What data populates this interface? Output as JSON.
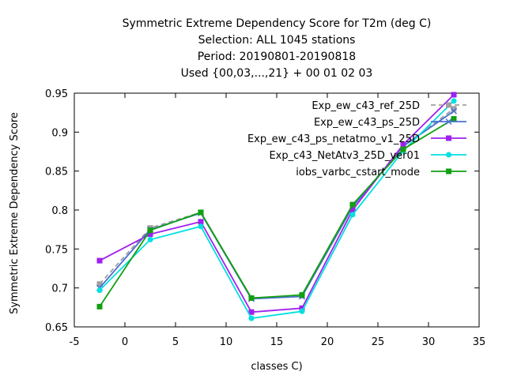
{
  "chart_data": {
    "type": "line",
    "title_lines": [
      "Symmetric Extreme Dependency Score  for T2m (deg C)",
      "Selection: ALL    1045 stations",
      "Period: 20190801-20190818",
      "Used {00,03,...,21} + 00 01 02 03"
    ],
    "xlabel": "classes C)",
    "ylabel": "Symmetric Extreme Dependency Score",
    "xlim": [
      -5,
      35
    ],
    "ylim": [
      0.65,
      0.95
    ],
    "xticks": [
      -5,
      0,
      5,
      10,
      15,
      20,
      25,
      30,
      35
    ],
    "yticks": [
      0.65,
      0.7,
      0.75,
      0.8,
      0.85,
      0.9,
      0.95
    ],
    "grid": false,
    "legend_position": "top-right",
    "x": [
      -2.5,
      2.5,
      7.5,
      12.5,
      17.5,
      22.5,
      27.5,
      32.5
    ],
    "series": [
      {
        "name": "Exp_ew_c43_ref_25D",
        "color": "#a0a0a0",
        "dash": "6,4",
        "marker": "square",
        "values": [
          0.705,
          0.777,
          0.797,
          0.687,
          0.69,
          0.805,
          0.882,
          0.93
        ]
      },
      {
        "name": "Exp_ew_c43_ps_25D",
        "color": "#4a6fd0",
        "dash": "",
        "marker": "x",
        "values": [
          0.7,
          0.775,
          0.796,
          0.686,
          0.689,
          0.804,
          0.882,
          0.927
        ]
      },
      {
        "name": "Exp_ew_c43_ps_netatmo_v1_25D",
        "color": "#a020f0",
        "dash": "",
        "marker": "square",
        "values": [
          0.735,
          0.769,
          0.785,
          0.669,
          0.674,
          0.8,
          0.884,
          0.948
        ]
      },
      {
        "name": "Exp_c43_NetAtv3_25D_ver01",
        "color": "#00e0e0",
        "dash": "",
        "marker": "circle",
        "values": [
          0.697,
          0.762,
          0.779,
          0.661,
          0.67,
          0.794,
          0.876,
          0.94
        ]
      },
      {
        "name": "iobs_varbc_cstart_mode",
        "color": "#10a010",
        "dash": "",
        "marker": "square",
        "values": [
          0.676,
          0.774,
          0.797,
          0.687,
          0.691,
          0.807,
          0.878,
          0.917
        ]
      }
    ]
  }
}
